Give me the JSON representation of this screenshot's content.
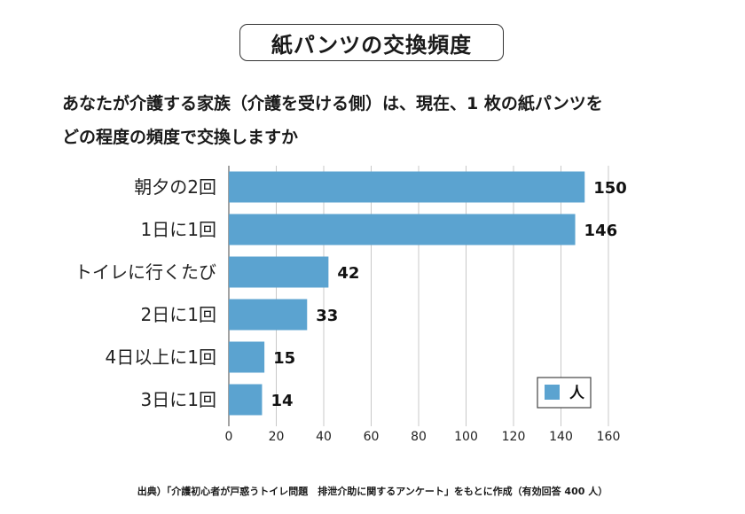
{
  "chart_data": {
    "type": "bar",
    "orientation": "horizontal",
    "title": "紙パンツの交換頻度",
    "question_lines": [
      "あなたが介護する家族（介護を受ける側）は、現在、1 枚の紙パンツを",
      "どの程度の頻度で交換しますか"
    ],
    "categories": [
      "朝夕の2回",
      "1日に1回",
      "トイレに行くたび",
      "2日に1回",
      "4日以上に1回",
      "3日に1回"
    ],
    "series": [
      {
        "name": "人",
        "values": [
          150,
          146,
          42,
          33,
          15,
          14
        ]
      }
    ],
    "xlim": [
      0,
      160
    ],
    "xticks": [
      0,
      20,
      40,
      60,
      80,
      100,
      120,
      140,
      160
    ],
    "grid": true,
    "legend": "bottom-right",
    "bar_color": "#5ba3d0",
    "source": "出典）「介護初心者が戸惑うトイレ問題　排泄介助に関するアンケート」をもとに作成（有効回答 400 人）"
  }
}
